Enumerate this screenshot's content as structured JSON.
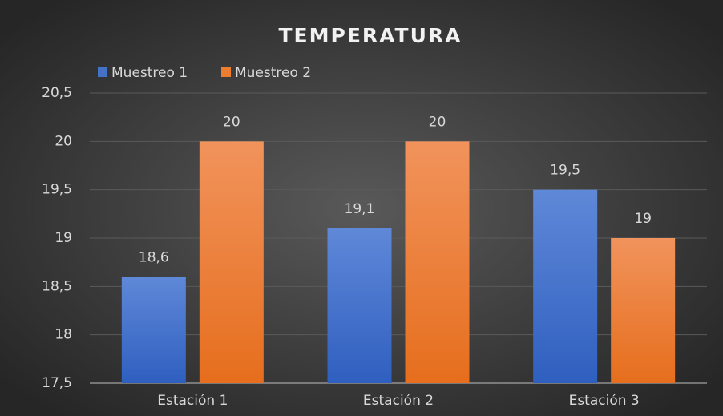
{
  "chart_data": {
    "type": "bar",
    "title": "TEMPERATURA",
    "categories": [
      "Estación 1",
      "Estación 2",
      "Estación 3"
    ],
    "series": [
      {
        "name": "Muestreo 1",
        "color": "#4472c4",
        "values": [
          18.6,
          19.1,
          19.5
        ],
        "value_labels": [
          "18,6",
          "19,1",
          "19,5"
        ]
      },
      {
        "name": "Muestreo 2",
        "color": "#ed7d31",
        "values": [
          20,
          20,
          19
        ]
      }
    ],
    "ylim": [
      17.5,
      20.5
    ],
    "yticks": [
      {
        "value": 17.5,
        "label": "17,5"
      },
      18,
      {
        "value": 18.5,
        "label": "18,5"
      },
      19,
      {
        "value": 19.5,
        "label": "19,5"
      },
      20,
      {
        "value": 20.5,
        "label": "20,5"
      }
    ],
    "grid": true,
    "legend": "top-left"
  }
}
